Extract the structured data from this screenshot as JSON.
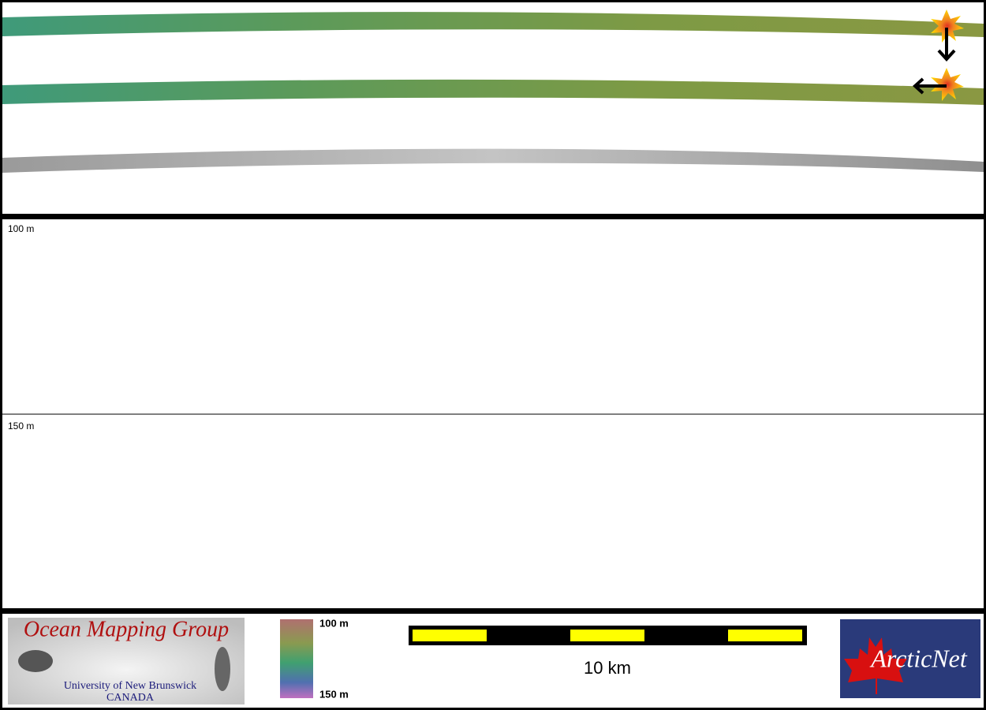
{
  "profile": {
    "depth_labels": [
      "100 m",
      "150 m"
    ]
  },
  "legend": {
    "depth_top": "100 m",
    "depth_bottom": "150 m",
    "scale": "10 km"
  },
  "logos": {
    "omg_title": "Ocean Mapping Group",
    "omg_university": "University of New Brunswick",
    "omg_country": "CANADA",
    "arcticnet": "ArcticNet"
  }
}
